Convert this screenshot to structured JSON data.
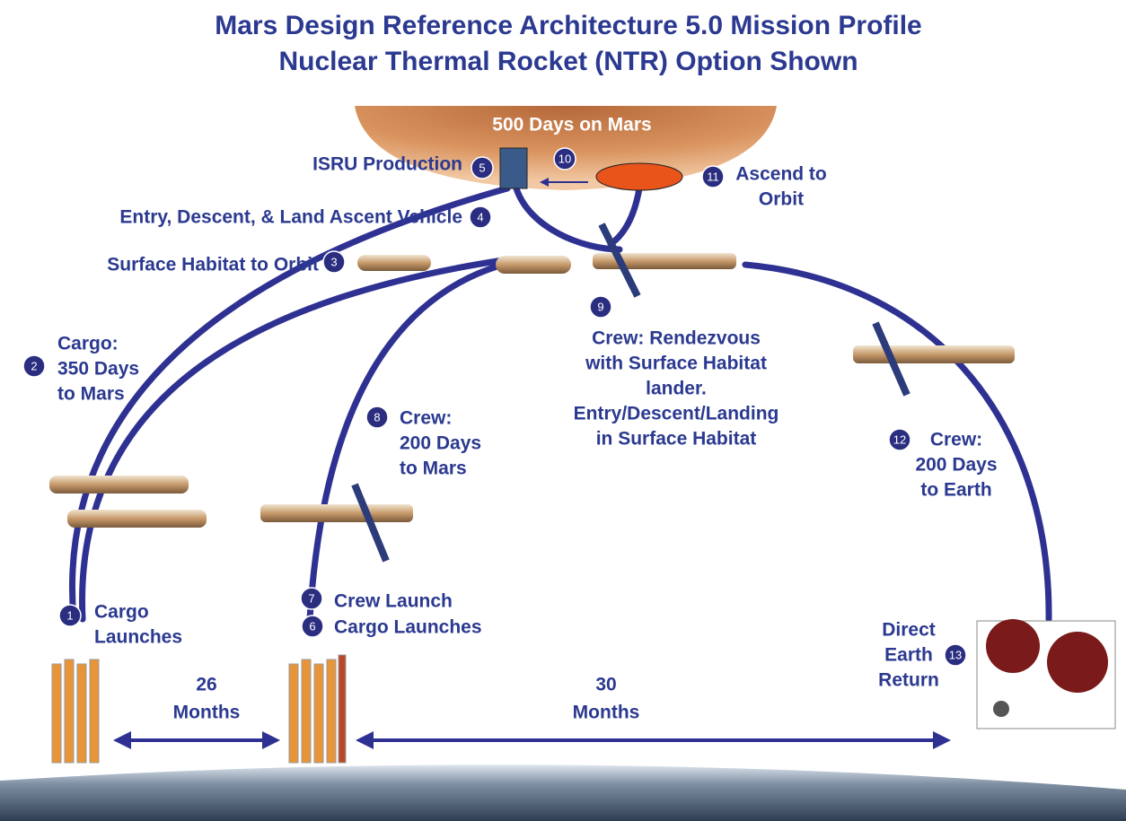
{
  "title": {
    "line1": "Mars Design Reference Architecture 5.0 Mission Profile",
    "line2": "Nuclear Thermal Rocket (NTR) Option Shown"
  },
  "mars_label": "500 Days on Mars",
  "steps": [
    {
      "number": 1,
      "lines": [
        "Cargo",
        "Launches"
      ]
    },
    {
      "number": 2,
      "lines": [
        "Cargo:",
        "350 Days",
        "to Mars"
      ]
    },
    {
      "number": 3,
      "lines": [
        "Surface Habitat to Orbit"
      ]
    },
    {
      "number": 4,
      "lines": [
        "Entry, Descent, & Land Ascent Vehicle"
      ]
    },
    {
      "number": 5,
      "lines": [
        "ISRU Production"
      ]
    },
    {
      "number": 6,
      "lines": [
        "Cargo Launches"
      ]
    },
    {
      "number": 7,
      "lines": [
        "Crew Launch"
      ]
    },
    {
      "number": 8,
      "lines": [
        "Crew:",
        "200 Days",
        "to Mars"
      ]
    },
    {
      "number": 9,
      "lines": [
        "Crew:  Rendezvous",
        "with Surface Habitat",
        "lander.",
        "Entry/Descent/Landing",
        "in Surface Habitat"
      ]
    },
    {
      "number": 10,
      "lines": []
    },
    {
      "number": 11,
      "lines": [
        "Ascend to",
        "Orbit"
      ]
    },
    {
      "number": 12,
      "lines": [
        "Crew:",
        "200 Days",
        "to Earth"
      ]
    },
    {
      "number": 13,
      "lines": [
        "Direct",
        "Earth",
        "Return"
      ]
    }
  ],
  "durations": [
    {
      "value": "26",
      "unit": "Months"
    },
    {
      "value": "30",
      "unit": "Months"
    }
  ]
}
